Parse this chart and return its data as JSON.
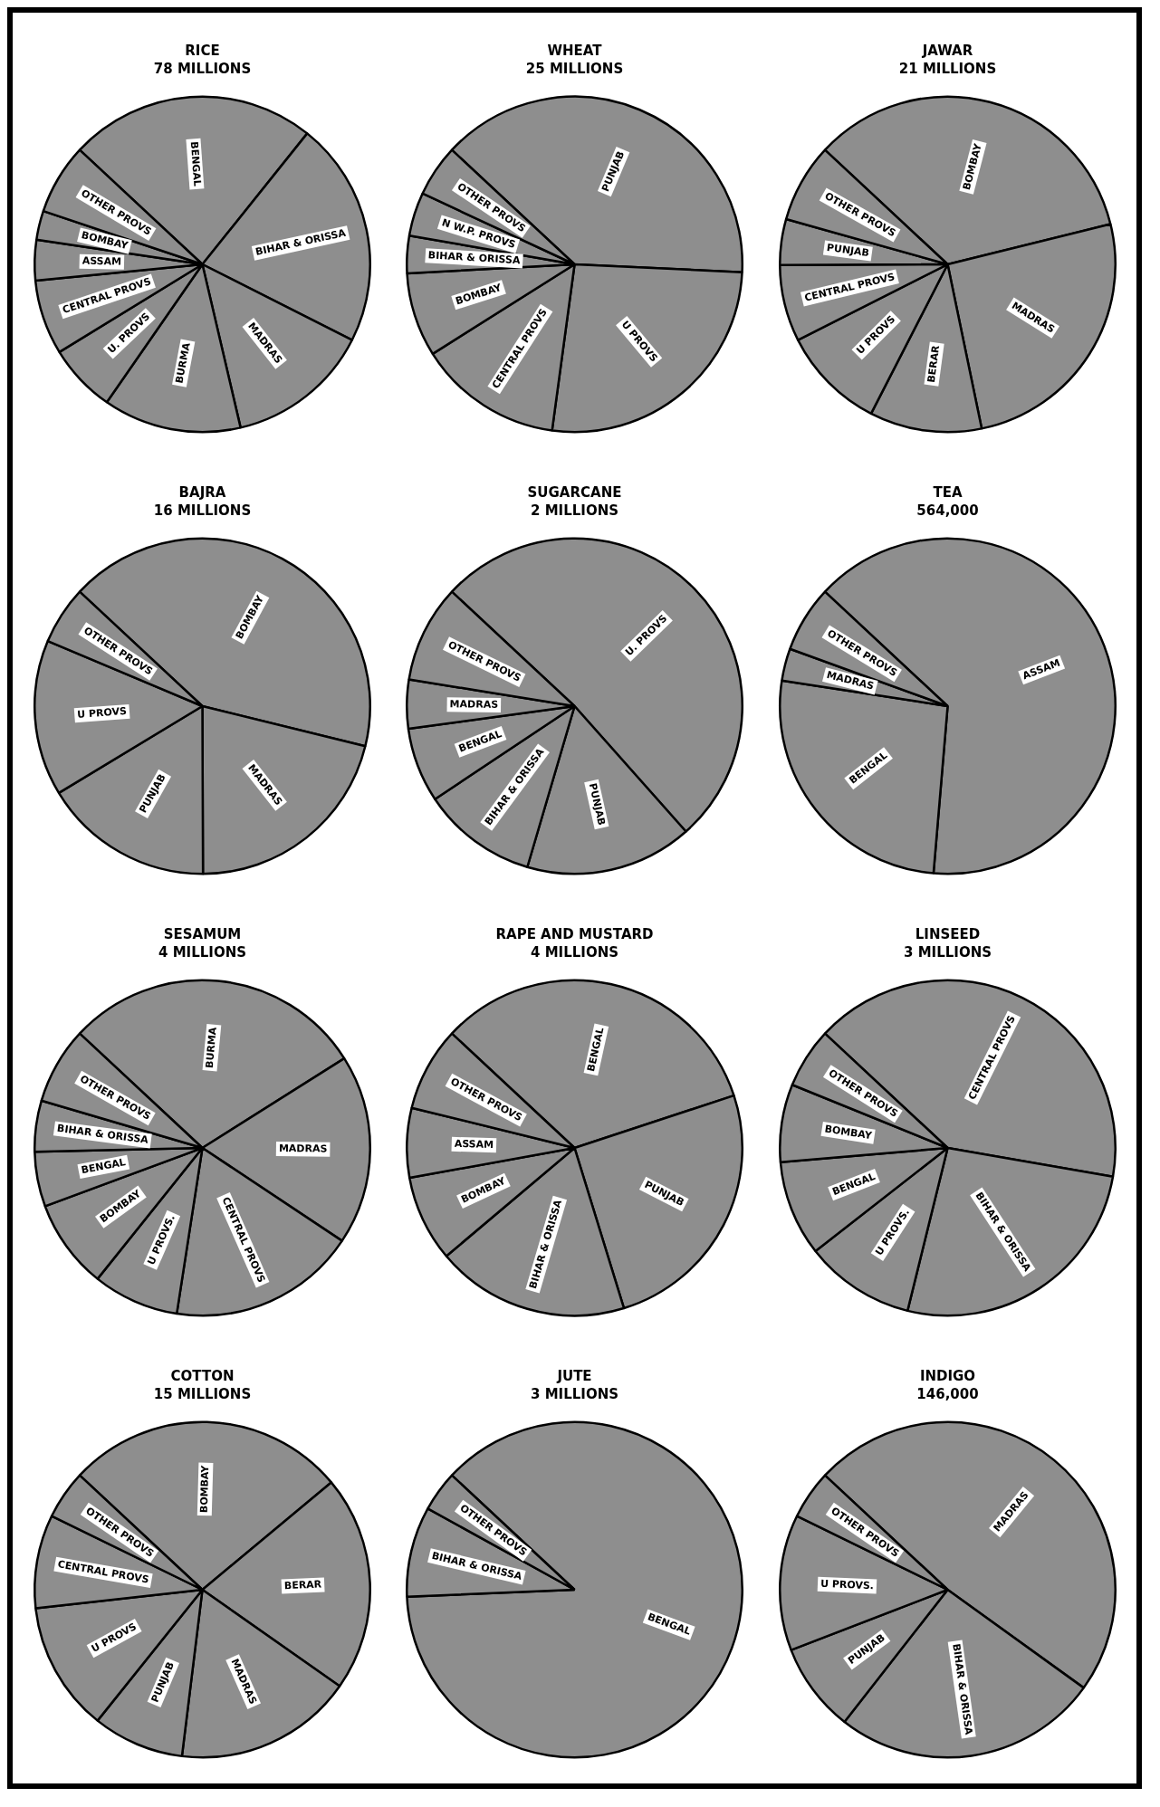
{
  "chart_data": [
    {
      "type": "pie",
      "title": "RICE",
      "subtitle": "78 MILLIONS",
      "categories": [
        "BENGAL",
        "BIHAR & ORISSA",
        "MADRAS",
        "BURMA",
        "U. PROVS",
        "CENTRAL PROVS",
        "ASSAM",
        "BOMBAY",
        "OTHER PROVS"
      ],
      "values": [
        23.8,
        21.7,
        13.9,
        13.3,
        6.6,
        7.2,
        3.9,
        2.8,
        6.8
      ],
      "colors": [
        "#8e8e8e",
        "#8e8e8e",
        "#8e8e8e",
        "#8e8e8e",
        "#8e8e8e",
        "#8e8e8e",
        "#8e8e8e",
        "#8e8e8e",
        "#8e8e8e"
      ]
    },
    {
      "type": "pie",
      "title": "WHEAT",
      "subtitle": "25 MILLIONS",
      "categories": [
        "PUNJAB",
        "U PROVS",
        "CENTRAL PROVS",
        "BOMBAY",
        "BIHAR & ORISSA",
        "N W.P. PROVS",
        "OTHER PROVS"
      ],
      "values": [
        38.8,
        26.4,
        13.9,
        8.1,
        3.6,
        4.2,
        5.0
      ],
      "colors": [
        "#8e8e8e",
        "#8e8e8e",
        "#8e8e8e",
        "#8e8e8e",
        "#8e8e8e",
        "#8e8e8e",
        "#8e8e8e"
      ]
    },
    {
      "type": "pie",
      "title": "JAWAR",
      "subtitle": "21 MILLIONS",
      "categories": [
        "BOMBAY",
        "MADRAS",
        "BERAR",
        "U PROVS",
        "CENTRAL PROVS",
        "PUNJAB",
        "OTHER PROVS"
      ],
      "values": [
        34.2,
        25.6,
        10.8,
        10.0,
        7.4,
        4.4,
        7.6
      ],
      "colors": [
        "#8e8e8e",
        "#8e8e8e",
        "#8e8e8e",
        "#8e8e8e",
        "#8e8e8e",
        "#8e8e8e",
        "#8e8e8e"
      ]
    },
    {
      "type": "pie",
      "title": "BAJRA",
      "subtitle": "16 MILLIONS",
      "categories": [
        "BOMBAY",
        "MADRAS",
        "PUNJAB",
        "U PROVS",
        "OTHER PROVS"
      ],
      "values": [
        41.9,
        21.1,
        16.4,
        15.0,
        5.6
      ],
      "colors": [
        "#8e8e8e",
        "#8e8e8e",
        "#8e8e8e",
        "#8e8e8e",
        "#8e8e8e"
      ]
    },
    {
      "type": "pie",
      "title": "SUGARCANE",
      "subtitle": "2 MILLIONS",
      "categories": [
        "U. PROVS",
        "PUNJAB",
        "BIHAR & ORISSA",
        "BENGAL",
        "MADRAS",
        "OTHER PROVS"
      ],
      "values": [
        51.5,
        16.1,
        11.1,
        7.2,
        4.7,
        9.4
      ],
      "colors": [
        "#8e8e8e",
        "#8e8e8e",
        "#8e8e8e",
        "#8e8e8e",
        "#8e8e8e",
        "#8e8e8e"
      ]
    },
    {
      "type": "pie",
      "title": "TEA",
      "subtitle": "564,000",
      "categories": [
        "ASSAM",
        "BENGAL",
        "MADRAS",
        "OTHER PROVS"
      ],
      "values": [
        64.4,
        26.1,
        3.1,
        6.4
      ],
      "colors": [
        "#8e8e8e",
        "#8e8e8e",
        "#8e8e8e",
        "#8e8e8e"
      ]
    },
    {
      "type": "pie",
      "title": "SESAMUM",
      "subtitle": "4 MILLIONS",
      "categories": [
        "BURMA",
        "MADRAS",
        "CENTRAL PROVS",
        "U PROVS.",
        "BOMBAY",
        "BENGAL",
        "BIHAR & ORISSA",
        "OTHER PROVS"
      ],
      "values": [
        29.1,
        18.3,
        18.1,
        8.3,
        8.6,
        5.3,
        4.9,
        7.4
      ],
      "colors": [
        "#8e8e8e",
        "#8e8e8e",
        "#8e8e8e",
        "#8e8e8e",
        "#8e8e8e",
        "#8e8e8e",
        "#8e8e8e",
        "#8e8e8e"
      ]
    },
    {
      "type": "pie",
      "title": "RAPE AND MUSTARD",
      "subtitle": "4 MILLIONS",
      "categories": [
        "BENGAL",
        "PUNJAB",
        "BIHAR & ORISSA",
        "BOMBAY",
        "ASSAM",
        "OTHER PROVS"
      ],
      "values": [
        33.0,
        25.3,
        18.6,
        8.3,
        6.7,
        8.1
      ],
      "colors": [
        "#8e8e8e",
        "#8e8e8e",
        "#8e8e8e",
        "#8e8e8e",
        "#8e8e8e",
        "#8e8e8e"
      ]
    },
    {
      "type": "pie",
      "title": "LINSEED",
      "subtitle": "3 MILLIONS",
      "categories": [
        "CENTRAL PROVS",
        "BIHAR & ORISSA",
        "U PROVS.",
        "BENGAL",
        "BOMBAY",
        "OTHER PROVS"
      ],
      "values": [
        40.8,
        26.1,
        10.6,
        9.2,
        7.5,
        5.8
      ],
      "colors": [
        "#8e8e8e",
        "#8e8e8e",
        "#8e8e8e",
        "#8e8e8e",
        "#8e8e8e",
        "#8e8e8e"
      ]
    },
    {
      "type": "pie",
      "title": "COTTON",
      "subtitle": "15 MILLIONS",
      "categories": [
        "BOMBAY",
        "BERAR",
        "MADRAS",
        "PUNJAB",
        "U PROVS",
        "CENTRAL PROVS",
        "OTHER PROVS"
      ],
      "values": [
        27.0,
        20.8,
        17.2,
        8.8,
        12.5,
        9.0,
        4.7
      ],
      "colors": [
        "#8e8e8e",
        "#8e8e8e",
        "#8e8e8e",
        "#8e8e8e",
        "#8e8e8e",
        "#8e8e8e",
        "#8e8e8e"
      ]
    },
    {
      "type": "pie",
      "title": "JUTE",
      "subtitle": "3 MILLIONS",
      "categories": [
        "BENGAL",
        "BIHAR & ORISSA",
        "OTHER PROVS"
      ],
      "values": [
        87.4,
        8.7,
        3.9
      ],
      "colors": [
        "#8e8e8e",
        "#8e8e8e",
        "#8e8e8e"
      ]
    },
    {
      "type": "pie",
      "title": "INDIGO",
      "subtitle": "146,000",
      "categories": [
        "MADRAS",
        "BIHAR & ORISSA",
        "PUNJAB",
        "U PROVS.",
        "OTHER PROVS"
      ],
      "values": [
        48.0,
        25.6,
        8.6,
        13.1,
        4.7
      ],
      "colors": [
        "#8e8e8e",
        "#8e8e8e",
        "#8e8e8e",
        "#8e8e8e",
        "#8e8e8e"
      ]
    }
  ]
}
